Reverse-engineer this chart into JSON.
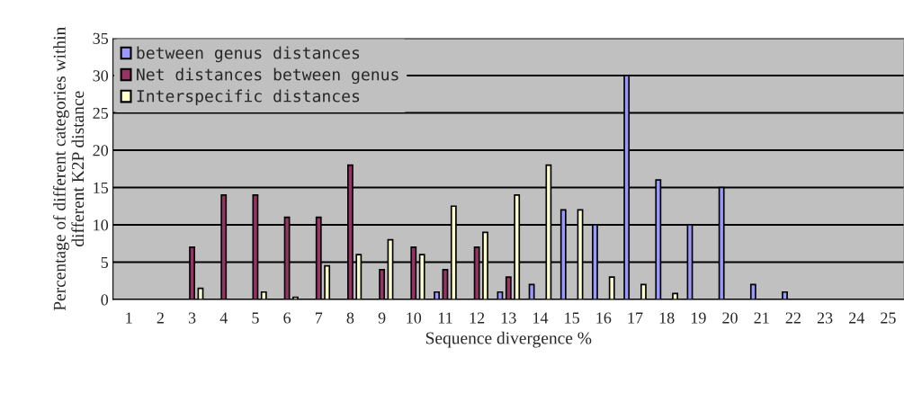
{
  "chart_data": {
    "type": "bar",
    "xlabel": "Sequence divergence %",
    "ylabel": "Percentage of different categories within\ndifferent K2P distance",
    "categories": [
      "1",
      "2",
      "3",
      "4",
      "5",
      "6",
      "7",
      "8",
      "9",
      "10",
      "11",
      "12",
      "13",
      "14",
      "15",
      "16",
      "17",
      "18",
      "19",
      "20",
      "21",
      "22",
      "23",
      "24",
      "25"
    ],
    "series": [
      {
        "name": "between genus distances",
        "color": "#9999ff",
        "values": [
          null,
          null,
          null,
          null,
          null,
          null,
          null,
          null,
          null,
          null,
          1,
          null,
          1,
          2,
          12,
          10,
          30,
          16,
          10,
          15,
          2,
          1,
          null,
          null,
          null
        ]
      },
      {
        "name": "Net distances between genus",
        "color": "#993366",
        "values": [
          null,
          null,
          7,
          14,
          14,
          11,
          11,
          18,
          4,
          7,
          4,
          7,
          3,
          null,
          null,
          null,
          null,
          null,
          null,
          null,
          null,
          null,
          null,
          null,
          null
        ]
      },
      {
        "name": "Interspecific distances",
        "color": "#ffffcc",
        "values": [
          null,
          null,
          1.5,
          null,
          1,
          0.3,
          4.5,
          6,
          8,
          6,
          12.5,
          9,
          14,
          18,
          12,
          3,
          2,
          0.8,
          null,
          null,
          null,
          null,
          null,
          null,
          null
        ]
      }
    ],
    "ylim": [
      0,
      35
    ],
    "yticks": [
      0,
      5,
      10,
      15,
      20,
      25,
      30,
      35
    ],
    "grid": "y",
    "legend": "top left"
  }
}
